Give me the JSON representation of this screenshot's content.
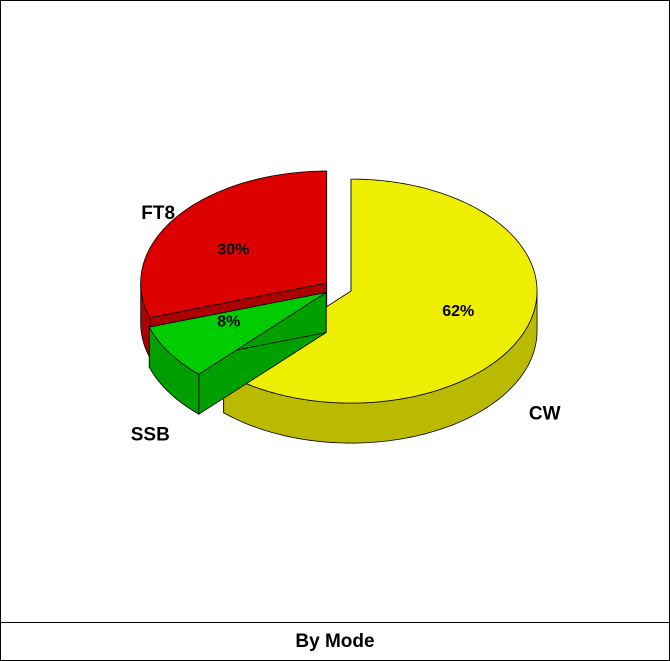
{
  "chart_data": {
    "type": "pie",
    "title": "By Mode",
    "categories": [
      "CW",
      "SSB",
      "FT8"
    ],
    "values": [
      62,
      8,
      30
    ],
    "value_labels": [
      "62%",
      "8%",
      "30%"
    ],
    "colors": [
      "#eeee00",
      "#00cc00",
      "#dd0000"
    ]
  }
}
